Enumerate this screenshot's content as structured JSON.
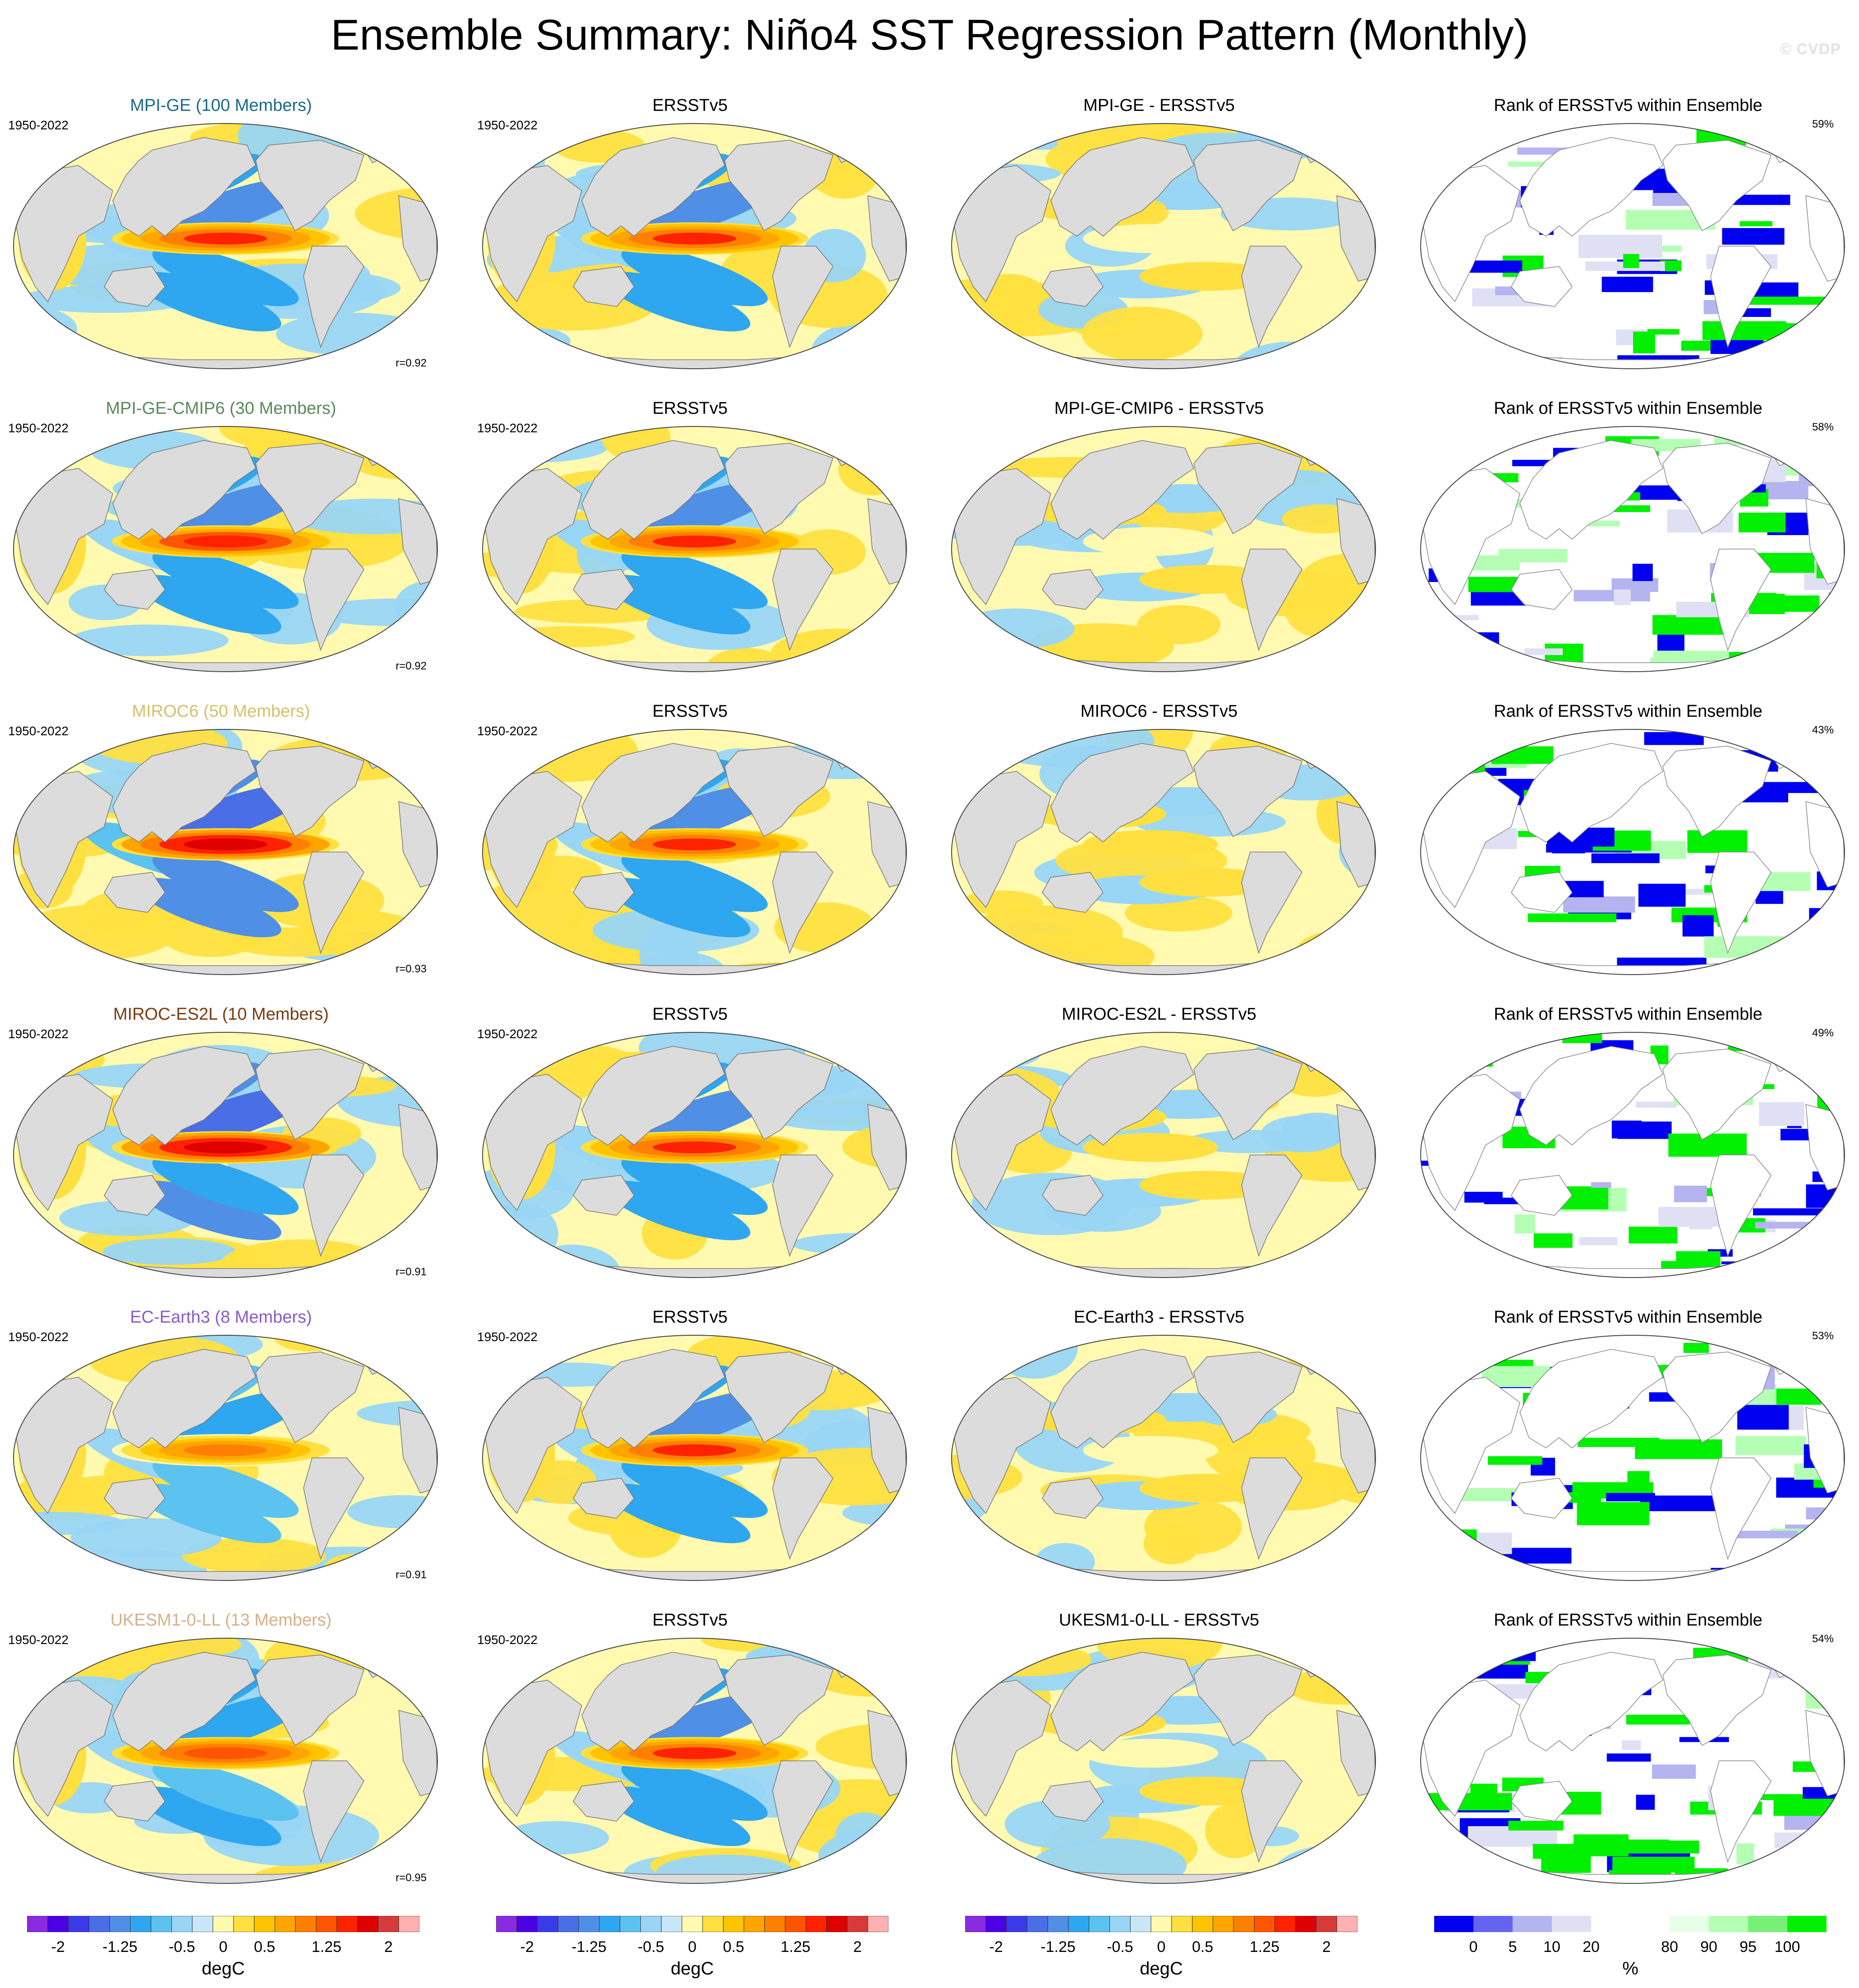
{
  "title": "Ensemble Summary: Niño4 SST Regression Pattern (Monthly)",
  "watermark": "© CVDP",
  "period": "1950-2022",
  "obs_name": "ERSSTv5",
  "rank_title": "Rank of ERSSTv5 within Ensemble",
  "colors": {
    "land": "#dcdcdc",
    "sst_scale": [
      "#8a2be2",
      "#4b00e6",
      "#3a3ae8",
      "#4a6ee6",
      "#4f8fe6",
      "#2fa6f0",
      "#5cc2f0",
      "#99d6f5",
      "#c8e6f7",
      "#fffab0",
      "#ffe040",
      "#ffc400",
      "#ffa500",
      "#ff8000",
      "#ff5500",
      "#ff2200",
      "#e00000",
      "#d63a3a",
      "#ffb0b0"
    ],
    "rank_scale": [
      "#0000f0",
      "#6464f0",
      "#b4b4f0",
      "#e0e0f5",
      "#ffffff",
      "#ffffff",
      "#e6ffe6",
      "#b4ffb4",
      "#78f078",
      "#00f000"
    ]
  },
  "rows": [
    {
      "model": "MPI-GE (100 Members)",
      "model_color": "#1a6a8a",
      "diff_title": "MPI-GE - ERSSTv5",
      "r": "r=0.92",
      "rank_pct": "59%",
      "amp": 1.0
    },
    {
      "model": "MPI-GE-CMIP6 (30 Members)",
      "model_color": "#5a8a5a",
      "diff_title": "MPI-GE-CMIP6 - ERSSTv5",
      "r": "r=0.92",
      "rank_pct": "58%",
      "amp": 1.05
    },
    {
      "model": "MIROC6 (50 Members)",
      "model_color": "#d4c16a",
      "diff_title": "MIROC6 - ERSSTv5",
      "r": "r=0.93",
      "rank_pct": "43%",
      "amp": 1.3
    },
    {
      "model": "MIROC-ES2L (10 Members)",
      "model_color": "#7a3a10",
      "diff_title": "MIROC-ES2L - ERSSTv5",
      "r": "r=0.91",
      "rank_pct": "49%",
      "amp": 1.25
    },
    {
      "model": "EC-Earth3 (8 Members)",
      "model_color": "#8a5ac8",
      "diff_title": "EC-Earth3 - ERSSTv5",
      "r": "r=0.91",
      "rank_pct": "53%",
      "amp": 0.75
    },
    {
      "model": "UKESM1-0-LL (13 Members)",
      "model_color": "#d6b08a",
      "diff_title": "UKESM1-0-LL - ERSSTv5",
      "r": "r=0.95",
      "rank_pct": "54%",
      "amp": 0.85
    }
  ],
  "colorbars": {
    "sst_labels": [
      "-2",
      "-1.25",
      "-0.5",
      "0",
      "0.5",
      "1.25",
      "2"
    ],
    "sst_unit": "degC",
    "rank_labels": [
      "0",
      "5",
      "10",
      "20",
      "80",
      "90",
      "95",
      "100"
    ],
    "rank_unit": "%"
  }
}
